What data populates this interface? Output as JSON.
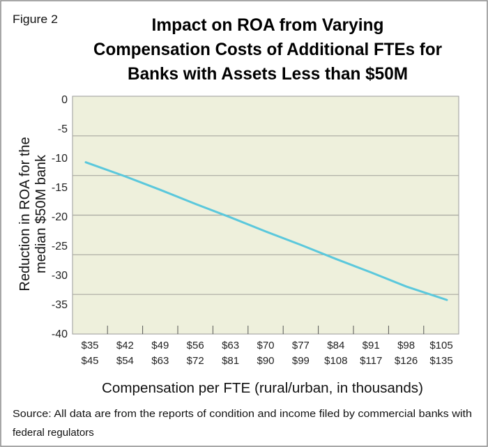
{
  "figure_label": "Figure 2",
  "source_line1": "Source: All data are from the reports of condition and income filed by commercial banks with",
  "source_line2": "federal regulators",
  "chart_data": {
    "type": "line",
    "title_lines": [
      "Impact on ROA from Varying",
      "Compensation Costs of Additional FTEs for",
      "Banks with Assets Less than $50M"
    ],
    "title": "Impact on ROA from Varying Compensation Costs of Additional FTEs for Banks with Assets Less than $50M",
    "xlabel": "Compensation per FTE (rural/urban, in thousands)",
    "ylabel_lines": [
      "Reduction in ROA for the",
      "median $50M bank"
    ],
    "ylabel": "Reduction in ROA for the median $50M bank",
    "categories": [
      [
        "$35",
        "$45"
      ],
      [
        "$42",
        "$54"
      ],
      [
        "$49",
        "$63"
      ],
      [
        "$56",
        "$72"
      ],
      [
        "$63",
        "$81"
      ],
      [
        "$70",
        "$90"
      ],
      [
        "$77",
        "$99"
      ],
      [
        "$84",
        "$108"
      ],
      [
        "$91",
        "$117"
      ],
      [
        "$98",
        "$126"
      ],
      [
        "$105",
        "$135"
      ]
    ],
    "y_ticks": [
      "0",
      "-5",
      "-10",
      "-15",
      "-20",
      "-25",
      "-30",
      "-35",
      "-40"
    ],
    "ylim": [
      -40,
      0
    ],
    "series": [
      {
        "name": "ROA reduction",
        "color": "#5bc8dc",
        "values": [
          -10.8,
          -13.2,
          -15.5,
          -17.9,
          -20.2,
          -22.6,
          -24.9,
          -27.3,
          -29.6,
          -32.0,
          -34.3
        ]
      }
    ],
    "grid": true,
    "legend": "none"
  }
}
